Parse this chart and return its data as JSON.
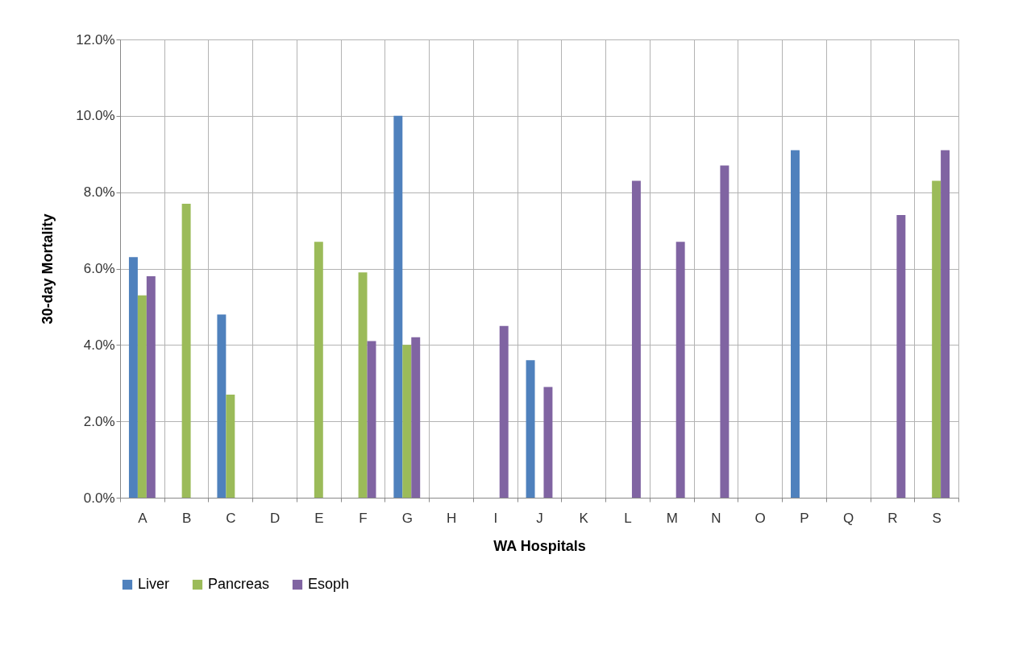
{
  "chart_data": {
    "type": "bar",
    "xlabel": "WA Hospitals",
    "ylabel": "30-day Mortality",
    "categories": [
      "A",
      "B",
      "C",
      "D",
      "E",
      "F",
      "G",
      "H",
      "I",
      "J",
      "K",
      "L",
      "M",
      "N",
      "O",
      "P",
      "Q",
      "R",
      "S"
    ],
    "series": [
      {
        "name": "Liver",
        "color": "#4f81bd",
        "values": [
          6.3,
          null,
          4.8,
          null,
          null,
          null,
          10.0,
          null,
          null,
          3.6,
          null,
          null,
          null,
          null,
          null,
          9.1,
          null,
          null,
          null
        ]
      },
      {
        "name": "Pancreas",
        "color": "#9bbb59",
        "values": [
          5.3,
          7.7,
          2.7,
          null,
          6.7,
          5.9,
          4.0,
          null,
          null,
          null,
          null,
          null,
          null,
          null,
          null,
          null,
          null,
          null,
          8.3
        ]
      },
      {
        "name": "Esoph",
        "color": "#8064a2",
        "values": [
          5.8,
          null,
          null,
          null,
          null,
          4.1,
          4.2,
          null,
          4.5,
          2.9,
          null,
          8.3,
          6.7,
          8.7,
          null,
          null,
          null,
          7.4,
          9.1
        ]
      }
    ],
    "ylim": [
      0,
      12
    ],
    "yticks": [
      {
        "value": 0,
        "label": "0.0%"
      },
      {
        "value": 2,
        "label": "2.0%"
      },
      {
        "value": 4,
        "label": "4.0%"
      },
      {
        "value": 6,
        "label": "6.0%"
      },
      {
        "value": 8,
        "label": "8.0%"
      },
      {
        "value": 10,
        "label": "10.0%"
      },
      {
        "value": 12,
        "label": "12.0%"
      }
    ],
    "grid": true,
    "legend": "bottom"
  }
}
